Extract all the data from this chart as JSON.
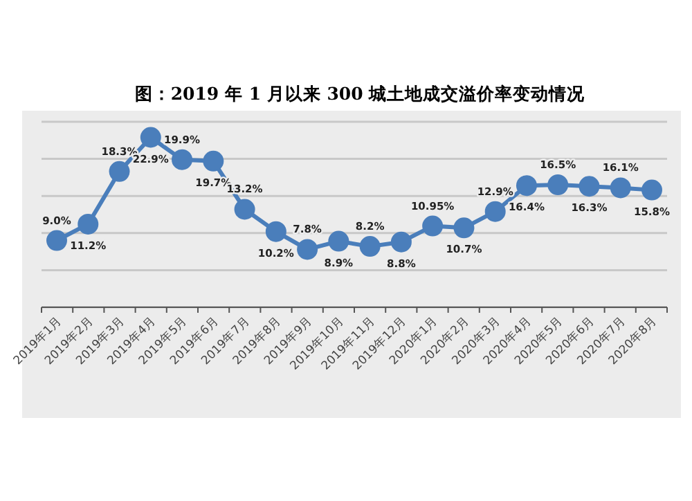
{
  "chart_data": {
    "type": "line",
    "title": "图：2019 年 1 月以来 300 城土地成交溢价率变动情况",
    "categories": [
      "2019年1月",
      "2019年2月",
      "2019年3月",
      "2019年4月",
      "2019年5月",
      "2019年6月",
      "2019年7月",
      "2019年8月",
      "2019年9月",
      "2019年10月",
      "2019年11月",
      "2019年12月",
      "2020年1月",
      "2020年2月",
      "2020年3月",
      "2020年4月",
      "2020年5月",
      "2020年6月",
      "2020年7月",
      "2020年8月"
    ],
    "series": [
      {
        "color": "#4a7ebb",
        "values": [
          9.0,
          11.2,
          18.3,
          22.9,
          19.9,
          19.7,
          13.2,
          10.2,
          7.8,
          8.9,
          8.2,
          8.8,
          10.95,
          10.7,
          12.9,
          16.4,
          16.5,
          16.3,
          16.1,
          15.8
        ],
        "value_labels": [
          "9.0%",
          "11.2%",
          "18.3%",
          "22.9%",
          "19.9%",
          "19.7%",
          "13.2%",
          "10.2%",
          "7.8%",
          "8.9%",
          "8.2%",
          "8.8%",
          "10.95%",
          "10.7%",
          "12.9%",
          "16.4%",
          "16.5%",
          "16.3%",
          "16.1%",
          "15.8%"
        ]
      }
    ],
    "ylim": [
      0,
      25
    ],
    "yticks": [
      {
        "value": 0,
        "label": null
      },
      {
        "value": 5,
        "label": null
      },
      {
        "value": 10,
        "label": null
      },
      {
        "value": 15,
        "label": null
      },
      {
        "value": 20,
        "label": null
      },
      {
        "value": 25,
        "label": null
      }
    ],
    "grid": "y",
    "tick_labels": "x",
    "marker": "circle",
    "line_style": "solid"
  }
}
